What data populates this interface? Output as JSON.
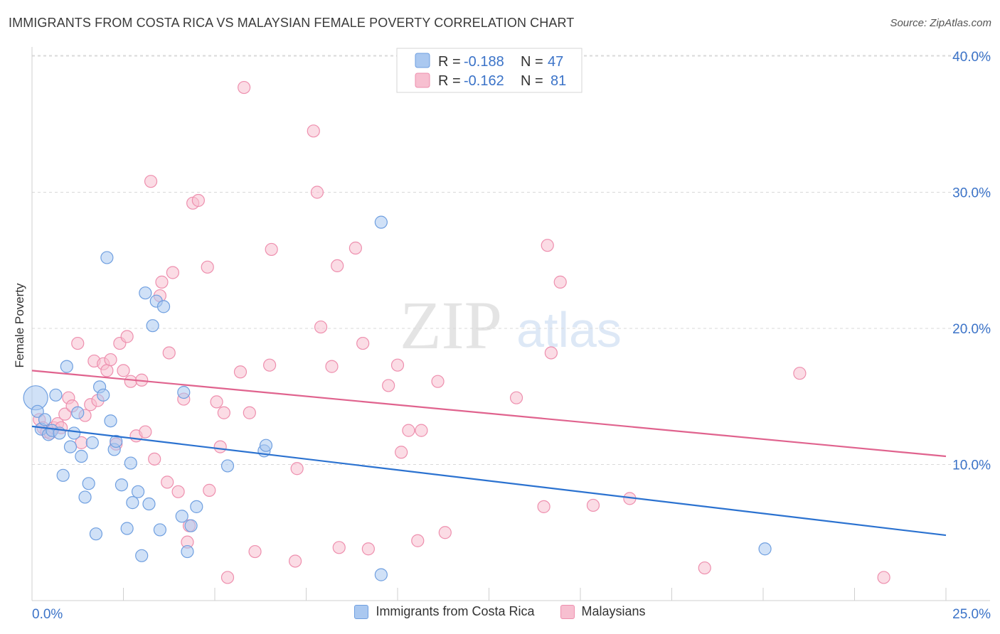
{
  "title": "IMMIGRANTS FROM COSTA RICA VS MALAYSIAN FEMALE POVERTY CORRELATION CHART",
  "source": "Source: ZipAtlas.com",
  "watermark": {
    "zip": "ZIP",
    "atlas": "atlas"
  },
  "colors": {
    "blue_fill": "#aac8f0",
    "blue_stroke": "#6f9fe0",
    "blue_line": "#2b72d0",
    "pink_fill": "#f7bfd0",
    "pink_stroke": "#ee8fae",
    "pink_line": "#e0638e",
    "axis_text": "#3b73c8",
    "grid": "#d9d9d9"
  },
  "stats": [
    {
      "r_label": "R = ",
      "r_value": "-0.188",
      "n_label": "N = ",
      "n_value": "47",
      "color": "blue"
    },
    {
      "r_label": "R = ",
      "r_value": "-0.162",
      "n_label": "N = ",
      "n_value": "81",
      "color": "pink"
    }
  ],
  "chart_data": {
    "type": "scatter",
    "title": "IMMIGRANTS FROM COSTA RICA VS MALAYSIAN FEMALE POVERTY CORRELATION CHART",
    "xlabel": "",
    "ylabel": "Female Poverty",
    "xlim": [
      0,
      25
    ],
    "ylim": [
      0,
      41.5
    ],
    "x_tick_labels": [
      "0.0%",
      "25.0%"
    ],
    "x_tick_values": [
      0,
      25
    ],
    "x_minor_ticks": [
      0,
      2.5,
      5,
      7.5,
      10,
      12.5,
      15,
      17.5,
      20,
      22.5,
      25
    ],
    "y_tick_labels": [
      "10.0%",
      "20.0%",
      "30.0%",
      "40.0%"
    ],
    "y_tick_values": [
      10,
      20,
      30,
      40
    ],
    "grid": true,
    "legend_position": "bottom-center",
    "series": [
      {
        "name": "Immigrants from Costa Rica",
        "color": "blue",
        "trend": {
          "x": [
            0,
            25
          ],
          "y": [
            12.8,
            4.8
          ]
        },
        "points": [
          [
            0.1,
            14.9,
            "big"
          ],
          [
            0.15,
            13.9
          ],
          [
            0.25,
            12.6
          ],
          [
            0.35,
            13.3
          ],
          [
            0.45,
            12.2
          ],
          [
            0.55,
            12.5
          ],
          [
            0.65,
            15.1
          ],
          [
            0.75,
            12.3
          ],
          [
            0.85,
            9.2
          ],
          [
            0.95,
            17.2
          ],
          [
            1.05,
            11.3
          ],
          [
            1.15,
            12.3
          ],
          [
            1.25,
            13.8
          ],
          [
            1.35,
            10.6
          ],
          [
            1.45,
            7.6
          ],
          [
            1.55,
            8.6
          ],
          [
            1.65,
            11.6
          ],
          [
            1.75,
            4.9
          ],
          [
            1.85,
            15.7
          ],
          [
            1.95,
            15.1
          ],
          [
            2.05,
            25.2
          ],
          [
            2.15,
            13.2
          ],
          [
            2.25,
            11.1
          ],
          [
            2.3,
            11.7
          ],
          [
            2.45,
            8.5
          ],
          [
            2.6,
            5.3
          ],
          [
            2.7,
            10.1
          ],
          [
            2.75,
            7.2
          ],
          [
            2.9,
            8.0
          ],
          [
            3.0,
            3.3
          ],
          [
            3.1,
            22.6
          ],
          [
            3.2,
            7.1
          ],
          [
            3.3,
            20.2
          ],
          [
            3.4,
            22.0
          ],
          [
            3.5,
            5.2
          ],
          [
            3.6,
            21.6
          ],
          [
            4.1,
            6.2
          ],
          [
            4.25,
            3.6
          ],
          [
            4.35,
            5.5
          ],
          [
            4.5,
            6.9
          ],
          [
            4.15,
            15.3
          ],
          [
            5.35,
            9.9
          ],
          [
            6.35,
            11.0
          ],
          [
            6.4,
            11.4
          ],
          [
            9.55,
            27.8
          ],
          [
            9.55,
            1.9
          ],
          [
            20.05,
            3.8
          ]
        ]
      },
      {
        "name": "Malaysians",
        "color": "pink",
        "trend": {
          "x": [
            0,
            25
          ],
          "y": [
            16.9,
            10.6
          ]
        },
        "points": [
          [
            0.2,
            13.3
          ],
          [
            0.3,
            12.7
          ],
          [
            0.4,
            12.4
          ],
          [
            0.5,
            12.3
          ],
          [
            0.6,
            12.7
          ],
          [
            0.7,
            13.0
          ],
          [
            0.8,
            12.7
          ],
          [
            0.9,
            13.7
          ],
          [
            1.0,
            14.9
          ],
          [
            1.1,
            14.3
          ],
          [
            1.25,
            18.9
          ],
          [
            1.35,
            11.6
          ],
          [
            1.45,
            13.6
          ],
          [
            1.6,
            14.4
          ],
          [
            1.7,
            17.6
          ],
          [
            1.8,
            14.7
          ],
          [
            1.95,
            17.4
          ],
          [
            2.05,
            16.9
          ],
          [
            2.15,
            17.7
          ],
          [
            2.3,
            11.5
          ],
          [
            2.4,
            18.9
          ],
          [
            2.5,
            16.9
          ],
          [
            2.6,
            19.4
          ],
          [
            2.7,
            16.1
          ],
          [
            2.85,
            12.1
          ],
          [
            3.0,
            16.2
          ],
          [
            3.1,
            12.4
          ],
          [
            3.25,
            30.8
          ],
          [
            3.35,
            10.4
          ],
          [
            3.5,
            22.4
          ],
          [
            3.55,
            23.4
          ],
          [
            3.7,
            8.7
          ],
          [
            3.75,
            18.2
          ],
          [
            3.85,
            24.1
          ],
          [
            4.0,
            8.0
          ],
          [
            4.15,
            14.8
          ],
          [
            4.25,
            4.3
          ],
          [
            4.3,
            5.5
          ],
          [
            4.4,
            29.2
          ],
          [
            4.55,
            29.4
          ],
          [
            4.8,
            24.5
          ],
          [
            4.85,
            8.1
          ],
          [
            5.05,
            14.6
          ],
          [
            5.15,
            11.3
          ],
          [
            5.25,
            13.8
          ],
          [
            5.35,
            1.7
          ],
          [
            5.7,
            16.8
          ],
          [
            5.8,
            37.7
          ],
          [
            5.95,
            13.8
          ],
          [
            6.1,
            3.6
          ],
          [
            6.5,
            17.3
          ],
          [
            6.55,
            25.8
          ],
          [
            7.2,
            2.9
          ],
          [
            7.25,
            9.7
          ],
          [
            7.7,
            34.5
          ],
          [
            7.8,
            30.0
          ],
          [
            7.9,
            20.1
          ],
          [
            8.2,
            17.2
          ],
          [
            8.35,
            24.6
          ],
          [
            8.4,
            3.9
          ],
          [
            8.85,
            25.9
          ],
          [
            9.05,
            18.9
          ],
          [
            9.2,
            3.8
          ],
          [
            9.75,
            15.8
          ],
          [
            10.0,
            17.3
          ],
          [
            10.1,
            10.9
          ],
          [
            10.3,
            12.5
          ],
          [
            10.55,
            4.4
          ],
          [
            10.65,
            12.5
          ],
          [
            11.1,
            16.1
          ],
          [
            11.3,
            5.0
          ],
          [
            13.25,
            14.9
          ],
          [
            14.0,
            6.9
          ],
          [
            14.1,
            26.1
          ],
          [
            14.2,
            18.2
          ],
          [
            14.45,
            23.4
          ],
          [
            15.35,
            7.0
          ],
          [
            16.35,
            7.5
          ],
          [
            18.4,
            2.4
          ],
          [
            21.0,
            16.7
          ],
          [
            23.3,
            1.7
          ]
        ]
      }
    ]
  },
  "legend": [
    {
      "label": "Immigrants from Costa Rica",
      "color": "blue"
    },
    {
      "label": "Malaysians",
      "color": "pink"
    }
  ]
}
